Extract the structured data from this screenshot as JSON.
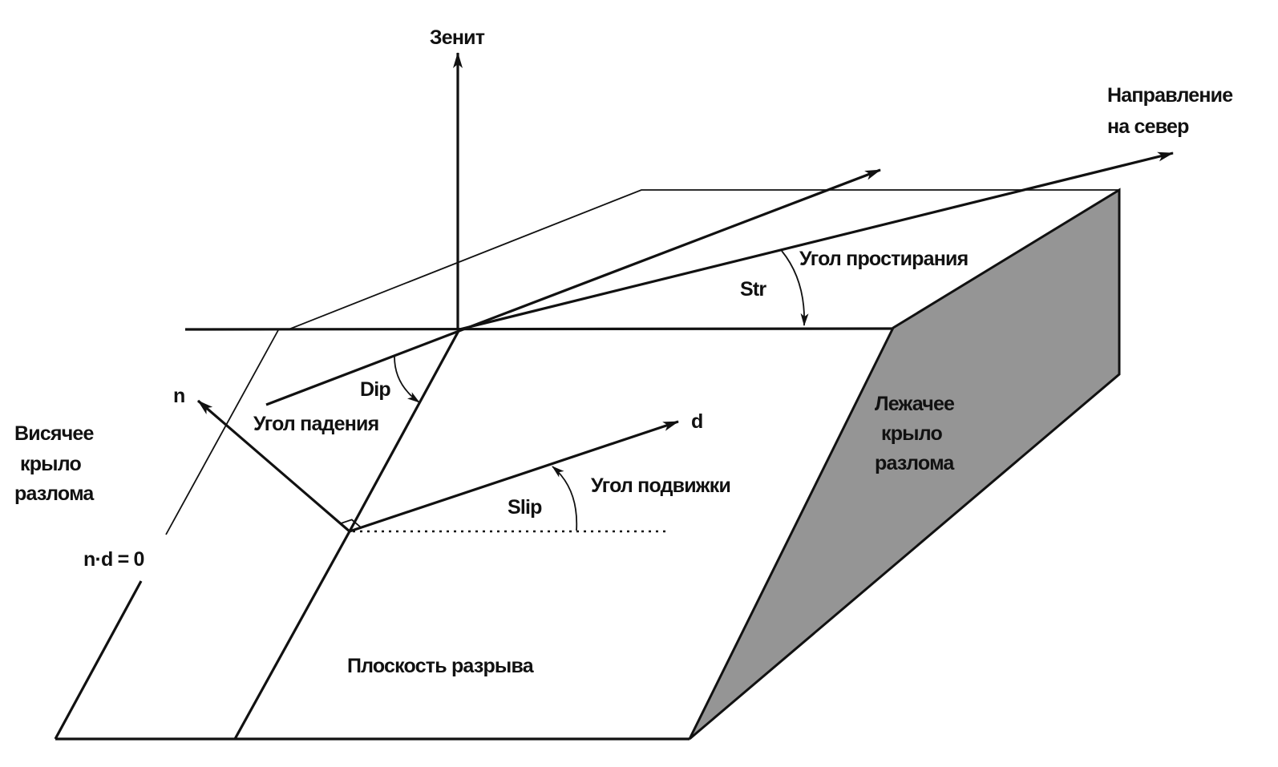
{
  "labels": {
    "zenith": "Зенит",
    "north_line1": "Направление",
    "north_line2": "на север",
    "strike_angle": "Угол простирания",
    "strike_symbol": "Str",
    "dip_symbol": "Dip",
    "dip_angle": "Угол падения",
    "normal": "n",
    "slip_vector": "d",
    "hanging_wall_line1": "Висячее",
    "hanging_wall_line2": "крыло",
    "hanging_wall_line3": "разлома",
    "footwall_line1": "Лежачее",
    "footwall_line2": "крыло",
    "footwall_line3": "разлома",
    "rake_angle": "Угол подвижки",
    "rake_symbol": "Slip",
    "orthogonality": "n·d = 0",
    "fault_plane": "Плоскость разрыва"
  },
  "colors": {
    "line": "#111111",
    "footwall_face": "#959595",
    "background": "#ffffff"
  }
}
